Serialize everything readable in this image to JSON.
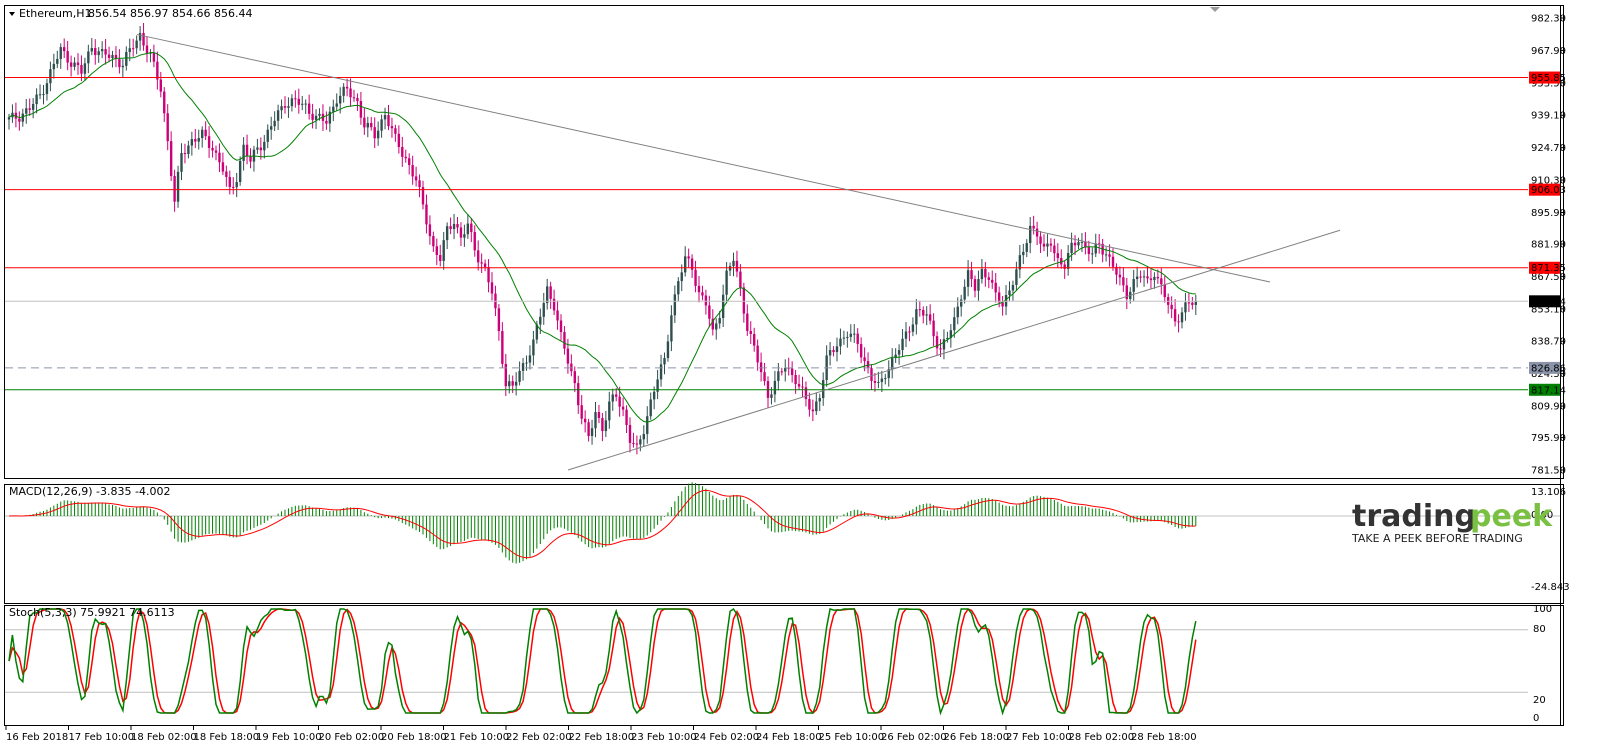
{
  "header": {
    "symbol": "Ethereum,H1",
    "ohlc": "856.54 856.97 854.66 856.44"
  },
  "price_axis": {
    "ticks": [
      "982.30",
      "967.90",
      "953.50",
      "939.10",
      "924.70",
      "910.30",
      "895.90",
      "881.90",
      "867.50",
      "853.10",
      "838.70",
      "824.30",
      "809.90",
      "795.90",
      "781.50"
    ]
  },
  "price_labels": [
    {
      "text": "955.85",
      "value": 955.85,
      "color": "#ff0000"
    },
    {
      "text": "906.03",
      "value": 906.03,
      "color": "#ff0000"
    },
    {
      "text": "871.35",
      "value": 871.35,
      "color": "#ff0000"
    },
    {
      "text": "856.44",
      "value": 856.44,
      "color": "#000000"
    },
    {
      "text": "826.86",
      "value": 826.86,
      "color": "#8a93a8"
    },
    {
      "text": "817.14",
      "value": 817.14,
      "color": "#008000"
    }
  ],
  "time_axis": [
    "16 Feb 2018",
    "17 Feb 10:00",
    "18 Feb 02:00",
    "18 Feb 18:00",
    "19 Feb 10:00",
    "20 Feb 02:00",
    "20 Feb 18:00",
    "21 Feb 10:00",
    "22 Feb 02:00",
    "22 Feb 18:00",
    "23 Feb 10:00",
    "24 Feb 02:00",
    "24 Feb 18:00",
    "25 Feb 10:00",
    "26 Feb 02:00",
    "26 Feb 18:00",
    "27 Feb 10:00",
    "28 Feb 02:00",
    "28 Feb 18:00"
  ],
  "macd": {
    "label": "MACD(12,26,9) -3.835 -4.002",
    "ticks": [
      "13.106",
      "0.00",
      "-24.843"
    ]
  },
  "stoch": {
    "label": "Stoch(5,3,3) 75.9921 74.6113",
    "ticks": [
      "100",
      "80",
      "20",
      "0"
    ]
  },
  "watermark": {
    "logo_part1": "trading",
    "logo_part2": "peek",
    "tagline": "TAKE A PEEK BEFORE TRADING"
  },
  "colors": {
    "bull": "#2f4f4f",
    "bear": "#cc0077",
    "ma": "#008000",
    "resistance": "#ff0000",
    "support": "#008000",
    "trendline": "#808080",
    "macd_hist": "#008000",
    "macd_signal": "#ff0000",
    "stoch_main": "#008000",
    "stoch_signal": "#ff0000",
    "logo_dark": "#333333",
    "logo_green": "#7ac143"
  },
  "chart_data": {
    "type": "candlestick",
    "title": "Ethereum,H1",
    "ylim": [
      781.5,
      982.3
    ],
    "horizontal_levels": [
      955.85,
      906.03,
      871.35,
      856.44,
      826.86,
      817.14
    ],
    "close_path": [
      [
        0,
        937
      ],
      [
        3,
        939
      ],
      [
        6,
        942
      ],
      [
        9,
        948
      ],
      [
        12,
        958
      ],
      [
        15,
        968
      ],
      [
        18,
        963
      ],
      [
        21,
        958
      ],
      [
        24,
        970
      ],
      [
        27,
        966
      ],
      [
        30,
        965
      ],
      [
        33,
        962
      ],
      [
        36,
        970
      ],
      [
        38,
        975
      ],
      [
        41,
        965
      ],
      [
        44,
        951
      ],
      [
        46,
        928
      ],
      [
        48,
        900
      ],
      [
        50,
        922
      ],
      [
        53,
        928
      ],
      [
        56,
        930
      ],
      [
        59,
        925
      ],
      [
        62,
        915
      ],
      [
        64,
        905
      ],
      [
        66,
        912
      ],
      [
        68,
        925
      ],
      [
        70,
        918
      ],
      [
        72,
        925
      ],
      [
        74,
        928
      ],
      [
        77,
        937
      ],
      [
        80,
        945
      ],
      [
        83,
        945
      ],
      [
        86,
        943
      ],
      [
        89,
        938
      ],
      [
        92,
        936
      ],
      [
        95,
        947
      ],
      [
        98,
        950
      ],
      [
        101,
        945
      ],
      [
        103,
        935
      ],
      [
        106,
        930
      ],
      [
        109,
        940
      ],
      [
        112,
        928
      ],
      [
        115,
        920
      ],
      [
        118,
        910
      ],
      [
        121,
        893
      ],
      [
        123,
        880
      ],
      [
        125,
        875
      ],
      [
        127,
        888
      ],
      [
        129,
        893
      ],
      [
        131,
        884
      ],
      [
        133,
        890
      ],
      [
        135,
        880
      ],
      [
        138,
        870
      ],
      [
        140,
        860
      ],
      [
        142,
        843
      ],
      [
        144,
        820
      ],
      [
        146,
        818
      ],
      [
        149,
        828
      ],
      [
        152,
        838
      ],
      [
        154,
        850
      ],
      [
        156,
        862
      ],
      [
        158,
        855
      ],
      [
        160,
        840
      ],
      [
        162,
        830
      ],
      [
        164,
        820
      ],
      [
        166,
        805
      ],
      [
        168,
        795
      ],
      [
        170,
        808
      ],
      [
        172,
        800
      ],
      [
        174,
        810
      ],
      [
        176,
        815
      ],
      [
        178,
        808
      ],
      [
        180,
        795
      ],
      [
        182,
        790
      ],
      [
        184,
        800
      ],
      [
        186,
        812
      ],
      [
        188,
        822
      ],
      [
        190,
        830
      ],
      [
        192,
        852
      ],
      [
        194,
        865
      ],
      [
        196,
        875
      ],
      [
        198,
        872
      ],
      [
        200,
        860
      ],
      [
        202,
        855
      ],
      [
        204,
        842
      ],
      [
        206,
        852
      ],
      [
        208,
        868
      ],
      [
        210,
        875
      ],
      [
        212,
        862
      ],
      [
        214,
        845
      ],
      [
        216,
        835
      ],
      [
        218,
        825
      ],
      [
        220,
        815
      ],
      [
        222,
        820
      ],
      [
        225,
        828
      ],
      [
        228,
        822
      ],
      [
        231,
        812
      ],
      [
        233,
        808
      ],
      [
        235,
        815
      ],
      [
        237,
        830
      ],
      [
        240,
        838
      ],
      [
        243,
        842
      ],
      [
        246,
        838
      ],
      [
        248,
        830
      ],
      [
        250,
        822
      ],
      [
        252,
        818
      ],
      [
        254,
        825
      ],
      [
        256,
        830
      ],
      [
        259,
        838
      ],
      [
        261,
        845
      ],
      [
        263,
        852
      ],
      [
        266,
        850
      ],
      [
        268,
        842
      ],
      [
        270,
        835
      ],
      [
        272,
        840
      ],
      [
        274,
        848
      ],
      [
        276,
        860
      ],
      [
        278,
        868
      ],
      [
        280,
        862
      ],
      [
        282,
        870
      ],
      [
        284,
        868
      ],
      [
        286,
        858
      ],
      [
        288,
        855
      ],
      [
        290,
        862
      ],
      [
        292,
        870
      ],
      [
        294,
        878
      ],
      [
        296,
        890
      ],
      [
        298,
        887
      ],
      [
        300,
        878
      ],
      [
        302,
        883
      ],
      [
        304,
        875
      ],
      [
        306,
        872
      ],
      [
        308,
        880
      ],
      [
        310,
        885
      ],
      [
        312,
        880
      ],
      [
        314,
        877
      ],
      [
        316,
        882
      ],
      [
        318,
        878
      ],
      [
        320,
        872
      ],
      [
        322,
        865
      ],
      [
        324,
        860
      ],
      [
        326,
        865
      ],
      [
        328,
        868
      ],
      [
        330,
        865
      ],
      [
        332,
        870
      ],
      [
        334,
        862
      ],
      [
        336,
        855
      ],
      [
        338,
        848
      ],
      [
        340,
        852
      ],
      [
        342,
        855
      ],
      [
        344,
        856.44
      ]
    ]
  }
}
